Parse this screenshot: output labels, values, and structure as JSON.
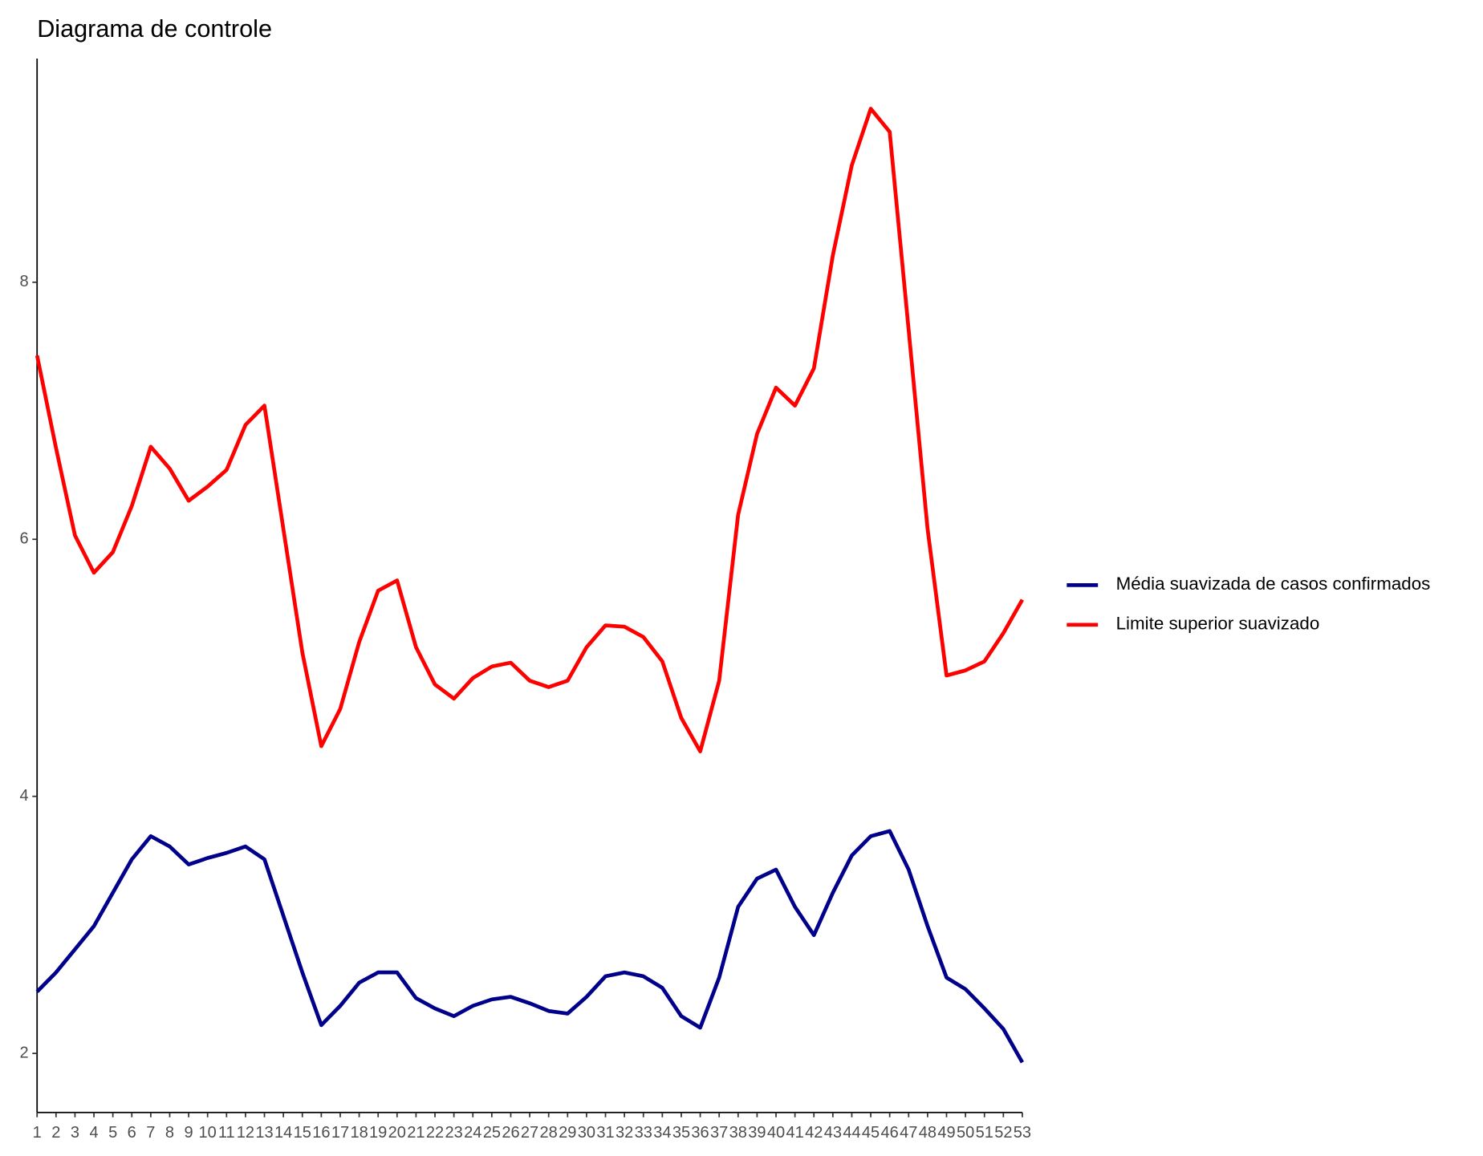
{
  "chart_data": {
    "type": "line",
    "title": "Diagrama de controle",
    "x": [
      1,
      2,
      3,
      4,
      5,
      6,
      7,
      8,
      9,
      10,
      11,
      12,
      13,
      14,
      15,
      16,
      17,
      18,
      19,
      20,
      21,
      22,
      23,
      24,
      25,
      26,
      27,
      28,
      29,
      30,
      31,
      32,
      33,
      34,
      35,
      36,
      37,
      38,
      39,
      40,
      41,
      42,
      43,
      44,
      45,
      46,
      47,
      48,
      49,
      50,
      51,
      52,
      53
    ],
    "series": [
      {
        "name": "Média suavizada de casos confirmados",
        "color": "#00008b",
        "values": [
          2.48,
          2.63,
          2.81,
          2.99,
          3.25,
          3.51,
          3.69,
          3.61,
          3.47,
          3.52,
          3.56,
          3.61,
          3.51,
          3.07,
          2.63,
          2.22,
          2.37,
          2.55,
          2.63,
          2.63,
          2.43,
          2.35,
          2.29,
          2.37,
          2.42,
          2.44,
          2.39,
          2.33,
          2.31,
          2.44,
          2.6,
          2.63,
          2.6,
          2.51,
          2.29,
          2.2,
          2.59,
          3.14,
          3.36,
          3.43,
          3.14,
          2.92,
          3.25,
          3.54,
          3.69,
          3.73,
          3.43,
          2.99,
          2.59,
          2.5,
          2.35,
          2.19,
          1.93
        ]
      },
      {
        "name": "Limite superior suavizado",
        "color": "#ff0000",
        "values": [
          7.43,
          6.71,
          6.03,
          5.74,
          5.9,
          6.26,
          6.72,
          6.55,
          6.3,
          6.41,
          6.54,
          6.89,
          7.04,
          6.08,
          5.12,
          4.39,
          4.68,
          5.2,
          5.6,
          5.68,
          5.16,
          4.87,
          4.76,
          4.92,
          5.01,
          5.04,
          4.9,
          4.85,
          4.9,
          5.16,
          5.33,
          5.32,
          5.24,
          5.05,
          4.61,
          4.35,
          4.9,
          6.19,
          6.82,
          7.18,
          7.04,
          7.33,
          8.21,
          8.91,
          9.35,
          9.17,
          7.63,
          6.08,
          4.94,
          4.98,
          5.05,
          5.27,
          5.53
        ]
      }
    ],
    "xlim": [
      1,
      53
    ],
    "xticks": [
      1,
      2,
      3,
      4,
      5,
      6,
      7,
      8,
      9,
      10,
      11,
      12,
      13,
      14,
      15,
      16,
      17,
      18,
      19,
      20,
      21,
      22,
      23,
      24,
      25,
      26,
      27,
      28,
      29,
      30,
      31,
      32,
      33,
      34,
      35,
      36,
      37,
      38,
      39,
      40,
      41,
      42,
      43,
      44,
      45,
      46,
      47,
      48,
      49,
      50,
      51,
      52,
      53
    ],
    "ylim": [
      1.54,
      9.74
    ],
    "yticks": [
      2,
      4,
      6,
      8
    ],
    "grid": false,
    "legend": "right"
  }
}
